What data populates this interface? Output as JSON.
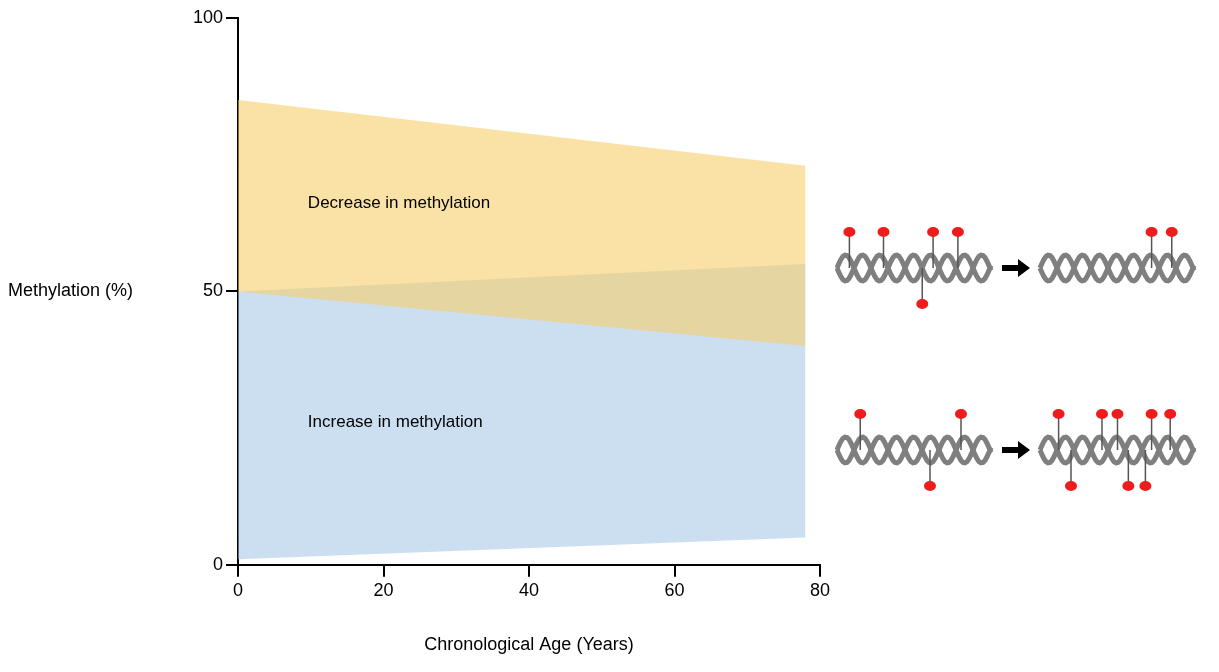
{
  "chart_data": {
    "type": "area",
    "xlabel": "Chronological Age (Years)",
    "ylabel": "Methylation (%)",
    "xlim": [
      0,
      80
    ],
    "xticks": [
      0,
      20,
      40,
      60,
      80
    ],
    "ylim": [
      0,
      100
    ],
    "yticks": [
      0,
      50,
      100
    ],
    "grid": false,
    "series": [
      {
        "name": "Decrease in methylation",
        "color": "#f7cf6b",
        "x": [
          0,
          78
        ],
        "lower": [
          50,
          40
        ],
        "upper": [
          85,
          73
        ]
      },
      {
        "name": "Increase in methylation",
        "color": "#a9c9e8",
        "x": [
          0,
          78
        ],
        "lower": [
          1,
          5
        ],
        "upper": [
          50,
          55
        ]
      }
    ]
  }
}
